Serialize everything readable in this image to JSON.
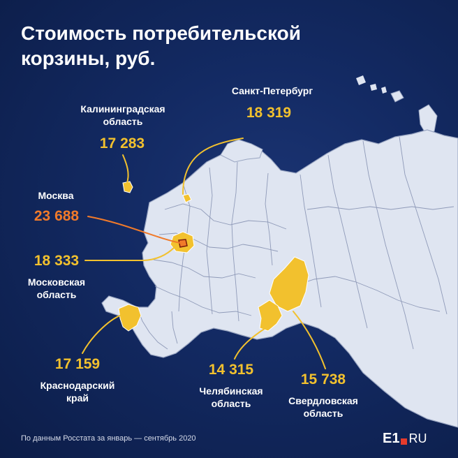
{
  "title": "Стоимость потребительской корзины, руб.",
  "regions": {
    "spb": {
      "name": "Санкт-Петербург",
      "value": "18 319"
    },
    "kaliningrad": {
      "name_line1": "Калининградская",
      "name_line2": "область",
      "value": "17 283"
    },
    "moscow": {
      "name": "Москва",
      "value": "23 688"
    },
    "moscow_oblast": {
      "value": "18 333",
      "name_line1": "Московская",
      "name_line2": "область"
    },
    "krasnodar": {
      "value": "17 159",
      "name_line1": "Краснодарский",
      "name_line2": "край"
    },
    "chelyabinsk": {
      "value": "14 315",
      "name_line1": "Челябинская",
      "name_line2": "область"
    },
    "sverdlovsk": {
      "value": "15 738",
      "name_line1": "Свердловская",
      "name_line2": "область"
    }
  },
  "footer": {
    "source": "По данным Росстата за январь — сентябрь 2020"
  },
  "logo": {
    "part1": "E1",
    "part2": "RU"
  },
  "colors": {
    "background": "#132a63",
    "land": "#dfe5f1",
    "highlight": "#f2c12e",
    "moscow_accent": "#f07a2a",
    "text": "#ffffff"
  }
}
